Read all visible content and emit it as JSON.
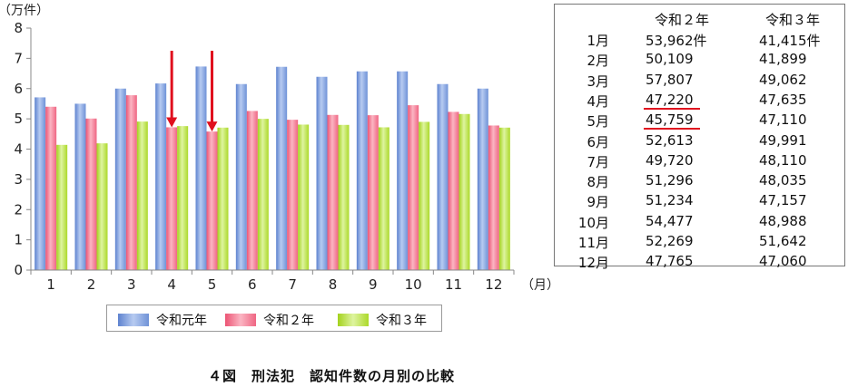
{
  "chart_data": {
    "type": "bar",
    "y_unit": "（万件）",
    "x_unit": "（月）",
    "categories": [
      "1",
      "2",
      "3",
      "4",
      "5",
      "6",
      "7",
      "8",
      "9",
      "10",
      "11",
      "12"
    ],
    "ylim": [
      0,
      8
    ],
    "yticks": [
      "0",
      "1",
      "2",
      "3",
      "4",
      "5",
      "6",
      "7",
      "8"
    ],
    "series": [
      {
        "name": "令和元年",
        "color": "#7f9fdc",
        "values": [
          5.71,
          5.5,
          6.0,
          6.17,
          6.73,
          6.15,
          6.72,
          6.39,
          6.57,
          6.57,
          6.15,
          6.0
        ]
      },
      {
        "name": "令和２年",
        "color": "#f27a92",
        "values": [
          5.4,
          5.01,
          5.78,
          4.72,
          4.58,
          5.26,
          4.97,
          5.13,
          5.12,
          5.45,
          5.23,
          4.78
        ]
      },
      {
        "name": "令和３年",
        "color": "#b8df3a",
        "values": [
          4.14,
          4.19,
          4.91,
          4.76,
          4.71,
          5.0,
          4.81,
          4.8,
          4.72,
          4.9,
          5.16,
          4.71
        ]
      }
    ],
    "arrows_on_categories": [
      "4",
      "5"
    ],
    "arrow_color": "#e0101e",
    "legend": "bottom",
    "grid": false,
    "title": "４図　刑法犯　認知件数の月別の比較"
  },
  "table": {
    "headers": [
      "令和２年",
      "令和３年"
    ],
    "rows": [
      {
        "month": "1月",
        "r2": "53,962件",
        "r3": "41,415件"
      },
      {
        "month": "2月",
        "r2": "50,109",
        "r3": "41,899"
      },
      {
        "month": "3月",
        "r2": "57,807",
        "r3": "49,062"
      },
      {
        "month": "4月",
        "r2": "47,220",
        "r3": "47,635",
        "highlight": true
      },
      {
        "month": "5月",
        "r2": "45,759",
        "r3": "47,110",
        "highlight": true
      },
      {
        "month": "6月",
        "r2": "52,613",
        "r3": "49,991"
      },
      {
        "month": "7月",
        "r2": "49,720",
        "r3": "48,110"
      },
      {
        "month": "8月",
        "r2": "51,296",
        "r3": "48,035"
      },
      {
        "month": "9月",
        "r2": "51,234",
        "r3": "47,157"
      },
      {
        "month": "10月",
        "r2": "54,477",
        "r3": "48,988"
      },
      {
        "month": "11月",
        "r2": "52,269",
        "r3": "51,642"
      },
      {
        "month": "12月",
        "r2": "47,765",
        "r3": "47,060"
      }
    ],
    "underline_color": "#e0101e"
  }
}
